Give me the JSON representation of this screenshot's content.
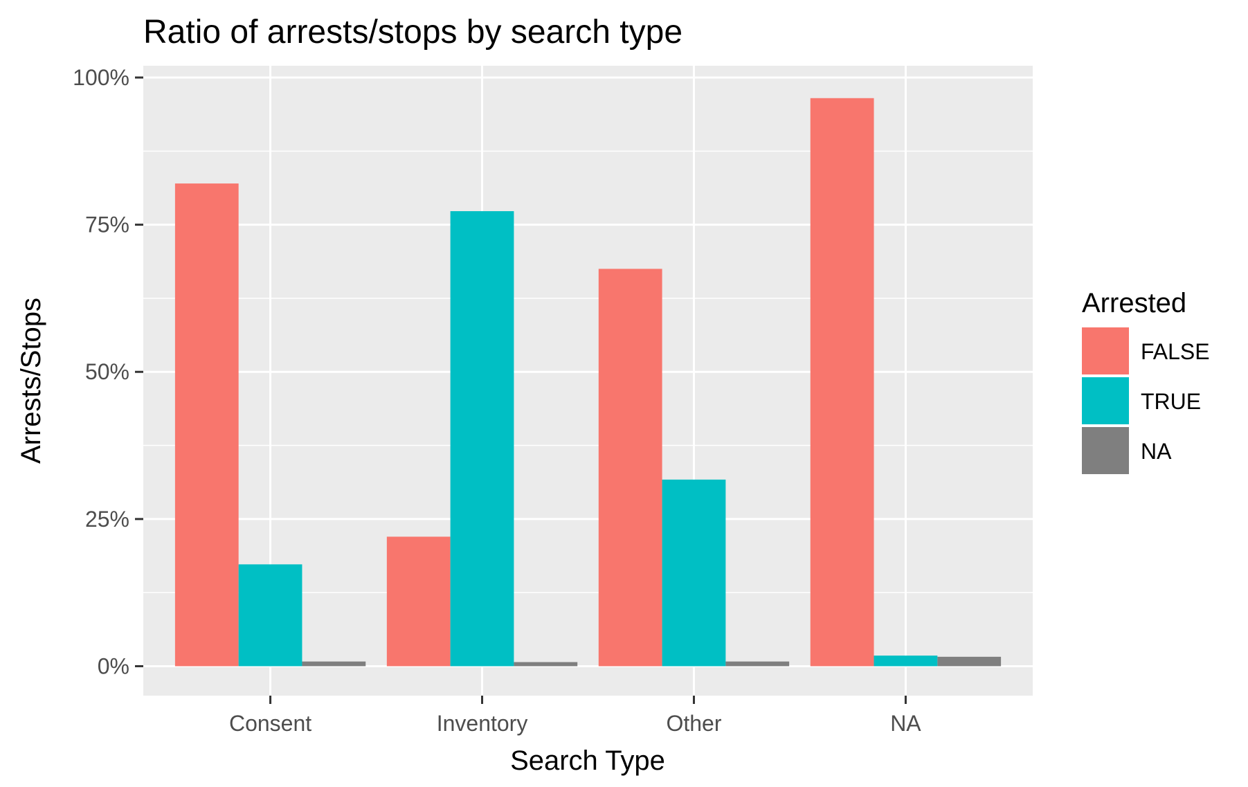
{
  "chart_data": {
    "type": "bar",
    "title": "Ratio of arrests/stops by search type",
    "xlabel": "Search Type",
    "ylabel": "Arrests/Stops",
    "categories": [
      "Consent",
      "Inventory",
      "Other",
      "NA"
    ],
    "series": [
      {
        "name": "FALSE",
        "color": "#F8766D",
        "values": [
          0.82,
          0.22,
          0.675,
          0.965
        ]
      },
      {
        "name": "TRUE",
        "color": "#00BFC4",
        "values": [
          0.173,
          0.773,
          0.317,
          0.018
        ]
      },
      {
        "name": "NA",
        "color": "#7F7F7F",
        "values": [
          0.008,
          0.007,
          0.008,
          0.016
        ]
      }
    ],
    "ylim": [
      -0.05,
      1.02
    ],
    "y_ticks": [
      0,
      0.25,
      0.5,
      0.75,
      1.0
    ],
    "y_tick_labels": [
      "0%",
      "25%",
      "50%",
      "75%",
      "100%"
    ],
    "legend_title": "Arrested",
    "legend_position": "right",
    "grid": true,
    "panel_color": "#EBEBEB"
  }
}
